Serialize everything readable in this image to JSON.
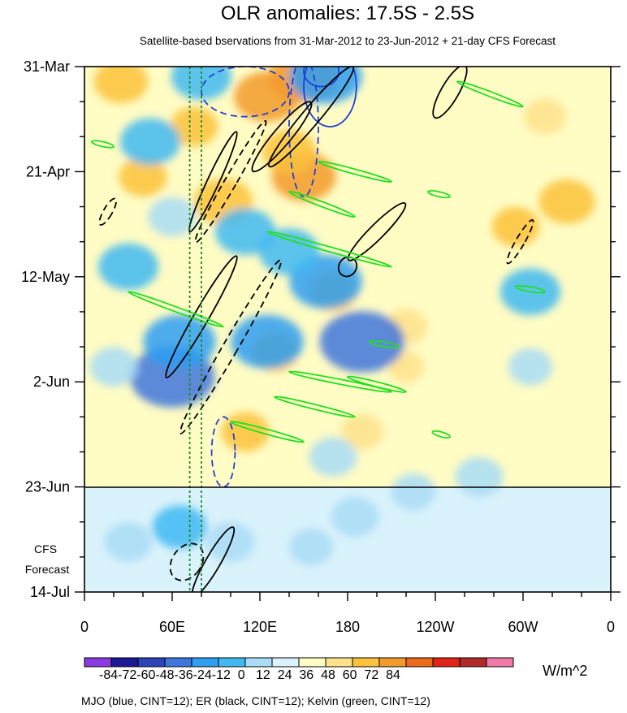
{
  "chart_data": {
    "type": "heatmap",
    "title": "OLR anomalies: 17.5S - 2.5S",
    "subtitle": "Satellite-based bservations from 31-Mar-2012 to 23-Jun-2012 + 21-day CFS Forecast",
    "xlabel": "",
    "ylabel": "",
    "x_range_lon_east": [
      0,
      360
    ],
    "x_ticks": [
      {
        "lon": 0,
        "label": "0"
      },
      {
        "lon": 60,
        "label": "60E"
      },
      {
        "lon": 120,
        "label": "120E"
      },
      {
        "lon": 180,
        "label": "180"
      },
      {
        "lon": 240,
        "label": "120W"
      },
      {
        "lon": 300,
        "label": "60W"
      },
      {
        "lon": 360,
        "label": "0"
      }
    ],
    "y_range_days": [
      0,
      105
    ],
    "y_ticks": [
      {
        "day": 0,
        "label": "31-Mar"
      },
      {
        "day": 21,
        "label": "21-Apr"
      },
      {
        "day": 42,
        "label": "12-May"
      },
      {
        "day": 63,
        "label": "2-Jun"
      },
      {
        "day": 84,
        "label": "23-Jun"
      },
      {
        "day": 105,
        "label": "14-Jul"
      }
    ],
    "forecast_start_day": 84,
    "forecast_label_lines": [
      "CFS",
      "Forecast"
    ],
    "reference_lines_lon": [
      72,
      80
    ],
    "units": "W/m^2",
    "colorbar": {
      "levels": [
        -84,
        -72,
        -60,
        -48,
        -36,
        -24,
        -12,
        0,
        12,
        24,
        36,
        48,
        60,
        72,
        84
      ],
      "label_text": "-84-72-60-48-36-24-12  0   12  24  36  48  60  72  84",
      "colors": [
        "#8a3ae0",
        "#1a1a96",
        "#2c44b8",
        "#3f76dc",
        "#2e9ef2",
        "#41b8f2",
        "#a9dcf6",
        "#d9f2fb",
        "#fffcc4",
        "#fee28a",
        "#fbc23a",
        "#f39a2c",
        "#ec6a1c",
        "#e02418",
        "#b02a2a",
        "#f27aa8"
      ]
    },
    "contour_legend": "MJO (blue, CINT=12); ER (black, CINT=12); Kelvin (green, CINT=12)",
    "series": [
      {
        "name": "MJO",
        "color": "#1f3fd8",
        "contour_interval": 12
      },
      {
        "name": "ER",
        "color": "#000000",
        "contour_interval": 12
      },
      {
        "name": "Kelvin",
        "color": "#22e022",
        "contour_interval": 12
      }
    ],
    "anomaly_features": [
      {
        "lon": 125,
        "day": 6,
        "value": 42
      },
      {
        "lon": 150,
        "day": 2,
        "value": 45
      },
      {
        "lon": 150,
        "day": 22,
        "value": 40
      },
      {
        "lon": 95,
        "day": 27,
        "value": 35
      },
      {
        "lon": 140,
        "day": 17,
        "value": 30
      },
      {
        "lon": 25,
        "day": 3,
        "value": 30
      },
      {
        "lon": 330,
        "day": 27,
        "value": 32
      },
      {
        "lon": 295,
        "day": 32,
        "value": 24
      },
      {
        "lon": 40,
        "day": 22,
        "value": 24
      },
      {
        "lon": 75,
        "day": 12,
        "value": 24
      },
      {
        "lon": 170,
        "day": 45,
        "value": 24
      },
      {
        "lon": 130,
        "day": 57,
        "value": 24
      },
      {
        "lon": 220,
        "day": 52,
        "value": 18
      },
      {
        "lon": 190,
        "day": 73,
        "value": 18
      },
      {
        "lon": 220,
        "day": 60,
        "value": 12
      },
      {
        "lon": 110,
        "day": 73,
        "value": 24
      },
      {
        "lon": 315,
        "day": 10,
        "value": 18
      },
      {
        "lon": 60,
        "day": 62,
        "value": -60
      },
      {
        "lon": 65,
        "day": 55,
        "value": -48
      },
      {
        "lon": 125,
        "day": 55,
        "value": -48
      },
      {
        "lon": 190,
        "day": 55,
        "value": -60
      },
      {
        "lon": 165,
        "day": 43,
        "value": -48
      },
      {
        "lon": 110,
        "day": 33,
        "value": -36
      },
      {
        "lon": 140,
        "day": 37,
        "value": -36
      },
      {
        "lon": 165,
        "day": 2,
        "value": -48
      },
      {
        "lon": 80,
        "day": 2,
        "value": -36
      },
      {
        "lon": 30,
        "day": 40,
        "value": -36
      },
      {
        "lon": 45,
        "day": 15,
        "value": -36
      },
      {
        "lon": 60,
        "day": 30,
        "value": -24
      },
      {
        "lon": 100,
        "day": 95,
        "value": -24
      },
      {
        "lon": 65,
        "day": 92,
        "value": -30
      },
      {
        "lon": 185,
        "day": 90,
        "value": -24
      },
      {
        "lon": 305,
        "day": 45,
        "value": -36
      },
      {
        "lon": 270,
        "day": 82,
        "value": -24
      },
      {
        "lon": 225,
        "day": 85,
        "value": -20
      },
      {
        "lon": 305,
        "day": 60,
        "value": -20
      },
      {
        "lon": 30,
        "day": 95,
        "value": -24
      },
      {
        "lon": 155,
        "day": 96,
        "value": -20
      },
      {
        "lon": 20,
        "day": 60,
        "value": -24
      },
      {
        "lon": 170,
        "day": 78,
        "value": -24
      }
    ],
    "mjo_contours": [
      {
        "lon": 162,
        "day": 1,
        "lon_axis": 12,
        "day_axis": 3,
        "sign": "neg"
      },
      {
        "lon": 168,
        "day": 4,
        "lon_axis": 18,
        "day_axis": 8,
        "sign": "neg"
      },
      {
        "lon": 150,
        "day": 12,
        "lon_axis": 10,
        "day_axis": 14,
        "sign": "pos"
      },
      {
        "lon": 95,
        "day": 77,
        "lon_axis": 8,
        "day_axis": 7,
        "sign": "pos"
      },
      {
        "lon": 110,
        "day": 5,
        "lon_axis": 30,
        "day_axis": 5,
        "sign": "pos"
      }
    ],
    "er_contours": [
      {
        "lon": 88,
        "day": 23,
        "lon_axis": 4,
        "day_axis": 11,
        "angle": -25,
        "sign": "neg"
      },
      {
        "lon": 100,
        "day": 23,
        "lon_axis": 4,
        "day_axis": 14,
        "angle": -30,
        "sign": "pos"
      },
      {
        "lon": 155,
        "day": 10,
        "lon_axis": 6,
        "day_axis": 13,
        "angle": -40,
        "sign": "neg"
      },
      {
        "lon": 135,
        "day": 14,
        "lon_axis": 6,
        "day_axis": 9,
        "angle": -40,
        "sign": "neg"
      },
      {
        "lon": 200,
        "day": 33,
        "lon_axis": 5,
        "day_axis": 8,
        "angle": -45,
        "sign": "neg"
      },
      {
        "lon": 100,
        "day": 56,
        "lon_axis": 5,
        "day_axis": 20,
        "angle": -30,
        "sign": "pos"
      },
      {
        "lon": 80,
        "day": 50,
        "lon_axis": 5,
        "day_axis": 14,
        "angle": -30,
        "sign": "neg"
      },
      {
        "lon": 250,
        "day": 5,
        "lon_axis": 6,
        "day_axis": 6,
        "angle": -30,
        "sign": "neg"
      },
      {
        "lon": 16,
        "day": 29,
        "lon_axis": 3,
        "day_axis": 3,
        "angle": -30,
        "sign": "pos"
      },
      {
        "lon": 298,
        "day": 35,
        "lon_axis": 3,
        "day_axis": 5,
        "angle": -30,
        "sign": "pos"
      },
      {
        "lon": 88,
        "day": 99,
        "lon_axis": 5,
        "day_axis": 8,
        "angle": -30,
        "sign": "neg"
      },
      {
        "lon": 70,
        "day": 99,
        "lon_axis": 10,
        "day_axis": 4,
        "angle": -35,
        "sign": "pos"
      },
      {
        "lon": 180,
        "day": 40,
        "lon_axis": 6,
        "day_axis": 2,
        "angle": -30,
        "sign": "neg"
      }
    ],
    "kelvin_contours": [
      {
        "lon0": 255,
        "day0": 3,
        "lon1": 300,
        "day1": 8
      },
      {
        "lon0": 160,
        "day0": 19,
        "lon1": 210,
        "day1": 23
      },
      {
        "lon0": 140,
        "day0": 25,
        "lon1": 185,
        "day1": 30
      },
      {
        "lon0": 125,
        "day0": 33,
        "lon1": 210,
        "day1": 40
      },
      {
        "lon0": 30,
        "day0": 45,
        "lon1": 95,
        "day1": 52
      },
      {
        "lon0": 140,
        "day0": 61,
        "lon1": 210,
        "day1": 65
      },
      {
        "lon0": 130,
        "day0": 66,
        "lon1": 185,
        "day1": 70
      },
      {
        "lon0": 100,
        "day0": 71,
        "lon1": 150,
        "day1": 75
      },
      {
        "lon0": 180,
        "day0": 62,
        "lon1": 220,
        "day1": 65
      },
      {
        "lon0": 238,
        "day0": 73,
        "lon1": 250,
        "day1": 74
      },
      {
        "lon0": 295,
        "day0": 44,
        "lon1": 315,
        "day1": 45
      },
      {
        "lon0": 5,
        "day0": 15,
        "lon1": 20,
        "day1": 16
      },
      {
        "lon0": 235,
        "day0": 25,
        "lon1": 250,
        "day1": 26
      },
      {
        "lon0": 195,
        "day0": 55,
        "lon1": 215,
        "day1": 56
      }
    ]
  }
}
